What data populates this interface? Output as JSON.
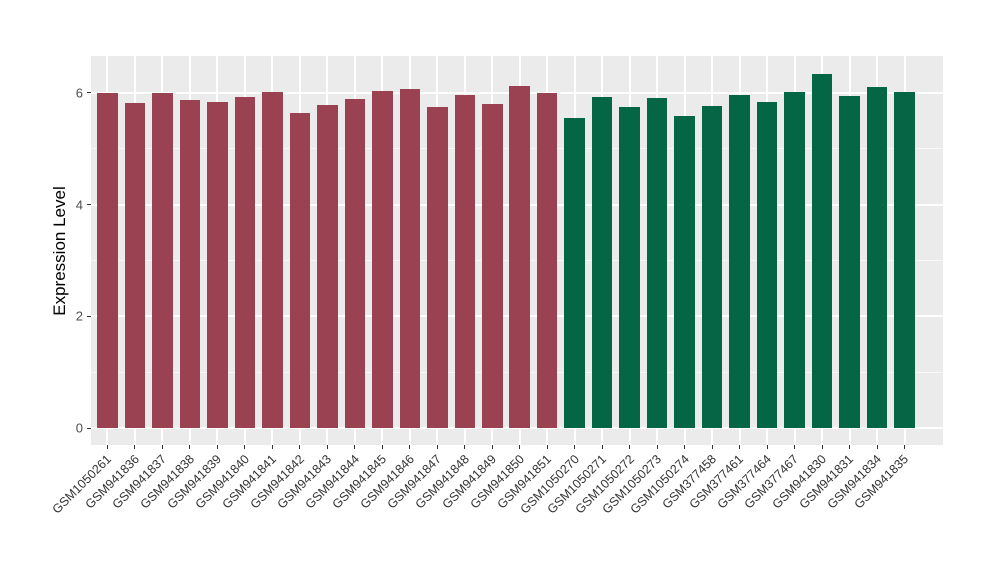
{
  "chart_data": {
    "type": "bar",
    "title": "",
    "xlabel": "",
    "ylabel": "Expression Level",
    "categories": [
      "GSM1050261",
      "GSM941836",
      "GSM941837",
      "GSM941838",
      "GSM941839",
      "GSM941840",
      "GSM941841",
      "GSM941842",
      "GSM941843",
      "GSM941844",
      "GSM941845",
      "GSM941846",
      "GSM941847",
      "GSM941848",
      "GSM941849",
      "GSM941850",
      "GSM941851",
      "GSM1050270",
      "GSM1050271",
      "GSM1050272",
      "GSM1050273",
      "GSM1050274",
      "GSM377458",
      "GSM377461",
      "GSM377464",
      "GSM377467",
      "GSM941830",
      "GSM941831",
      "GSM941834",
      "GSM941835"
    ],
    "values": [
      6.0,
      5.81,
      5.99,
      5.87,
      5.83,
      5.93,
      6.02,
      5.64,
      5.79,
      5.89,
      6.04,
      6.07,
      5.75,
      5.96,
      5.8,
      6.13,
      6.0,
      5.55,
      5.93,
      5.75,
      5.9,
      5.59,
      5.77,
      5.96,
      5.83,
      6.02,
      6.34,
      5.95,
      6.11,
      6.02
    ],
    "bar_colors": [
      "#9B4252",
      "#9B4252",
      "#9B4252",
      "#9B4252",
      "#9B4252",
      "#9B4252",
      "#9B4252",
      "#9B4252",
      "#9B4252",
      "#9B4252",
      "#9B4252",
      "#9B4252",
      "#9B4252",
      "#9B4252",
      "#9B4252",
      "#9B4252",
      "#9B4252",
      "#056646",
      "#056646",
      "#056646",
      "#056646",
      "#056646",
      "#056646",
      "#056646",
      "#056646",
      "#056646",
      "#056646",
      "#056646",
      "#056646",
      "#056646"
    ],
    "group_colors": {
      "group1": "#9B4252",
      "group2": "#056646"
    },
    "yticks": [
      0,
      2,
      4,
      6
    ],
    "ytick_labels": [
      "0",
      "2",
      "4",
      "6"
    ],
    "minor_yticks": [
      1,
      3,
      5
    ],
    "ylim": [
      0,
      6.66
    ],
    "grid": "on",
    "legend_position": "none",
    "panel_background": "#EBEBEB",
    "grid_color": "#FFFFFF"
  }
}
